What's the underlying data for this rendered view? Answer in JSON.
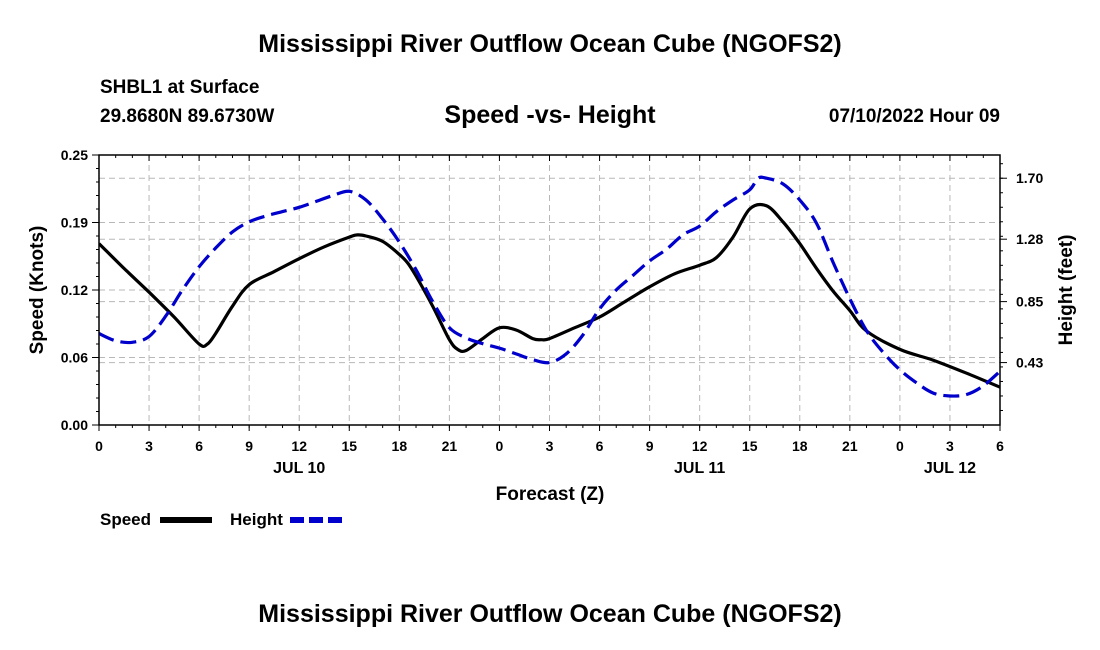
{
  "chart_data": {
    "type": "line",
    "title": "Mississippi River Outflow Ocean Cube (NGOFS2)",
    "station": "SHBL1 at Surface",
    "location": "29.8680N  89.6730W",
    "subtitle": "Speed -vs- Height",
    "datetime": "07/10/2022 Hour 09",
    "xlabel": "Forecast (Z)",
    "ylabel_left": "Speed (Knots)",
    "ylabel_right": "Height (feet)",
    "x_ticks": [
      "0",
      "3",
      "6",
      "9",
      "12",
      "15",
      "18",
      "21",
      "0",
      "3",
      "6",
      "9",
      "12",
      "15",
      "18",
      "21",
      "0",
      "3",
      "6"
    ],
    "date_labels": [
      {
        "label": "JUL 10",
        "hour": 12
      },
      {
        "label": "JUL 11",
        "hour": 36
      },
      {
        "label": "JUL 12",
        "hour": 51
      }
    ],
    "xlim": [
      0,
      54
    ],
    "ylim_left": [
      0,
      0.25
    ],
    "left_ticks": [
      "0.00",
      "0.06",
      "0.12",
      "0.19",
      "0.25"
    ],
    "left_tick_values": [
      0,
      0.0625,
      0.125,
      0.1875,
      0.25
    ],
    "right_ticks": [
      "0.43",
      "0.85",
      "1.28",
      "1.70"
    ],
    "right_tick_values": [
      0.43,
      0.85,
      1.28,
      1.7
    ],
    "ylim_right": [
      0.0,
      1.86
    ],
    "grid": true,
    "legend_position": "bottom-left",
    "series": [
      {
        "name": "Speed",
        "axis": "left",
        "color": "#000000",
        "style": "solid",
        "x": [
          0,
          1.5,
          3,
          4.5,
          6,
          6.5,
          7,
          8,
          9,
          10.5,
          12,
          13.5,
          15,
          15.5,
          16,
          17,
          18,
          18.5,
          19,
          20,
          21,
          21.5,
          22,
          23,
          24,
          25,
          26,
          26.5,
          27,
          28.5,
          30,
          31.5,
          33,
          34.5,
          36,
          37,
          38,
          39,
          40,
          41,
          42,
          43,
          44,
          45,
          46,
          48,
          50,
          52,
          54
        ],
        "values": [
          0.168,
          0.145,
          0.123,
          0.1,
          0.075,
          0.075,
          0.085,
          0.11,
          0.13,
          0.142,
          0.154,
          0.165,
          0.174,
          0.176,
          0.175,
          0.17,
          0.158,
          0.15,
          0.138,
          0.11,
          0.079,
          0.07,
          0.069,
          0.08,
          0.09,
          0.088,
          0.08,
          0.079,
          0.08,
          0.09,
          0.1,
          0.114,
          0.128,
          0.14,
          0.148,
          0.155,
          0.174,
          0.2,
          0.203,
          0.188,
          0.168,
          0.145,
          0.124,
          0.106,
          0.087,
          0.07,
          0.06,
          0.048,
          0.035
        ]
      },
      {
        "name": "Height",
        "axis": "right",
        "color": "#0000cc",
        "style": "dashed",
        "x": [
          0,
          1,
          2,
          3,
          4,
          5,
          6,
          7,
          8,
          9,
          10,
          11,
          12,
          13,
          14,
          15,
          16,
          17,
          18,
          19,
          20,
          21,
          22,
          23,
          24,
          25,
          26,
          27,
          28,
          29,
          30,
          31,
          32,
          33,
          34,
          35,
          36,
          37,
          38,
          39,
          39.5,
          40,
          41,
          42,
          43,
          44,
          45,
          46,
          47,
          48,
          49,
          50,
          51,
          52,
          53,
          54
        ],
        "values": [
          0.63,
          0.58,
          0.57,
          0.61,
          0.75,
          0.93,
          1.09,
          1.22,
          1.33,
          1.4,
          1.44,
          1.47,
          1.5,
          1.54,
          1.58,
          1.61,
          1.55,
          1.42,
          1.26,
          1.07,
          0.85,
          0.67,
          0.6,
          0.56,
          0.53,
          0.49,
          0.45,
          0.43,
          0.49,
          0.62,
          0.8,
          0.93,
          1.03,
          1.13,
          1.21,
          1.31,
          1.37,
          1.47,
          1.55,
          1.62,
          1.7,
          1.7,
          1.66,
          1.55,
          1.39,
          1.12,
          0.87,
          0.65,
          0.5,
          0.38,
          0.29,
          0.22,
          0.2,
          0.21,
          0.27,
          0.37
        ]
      }
    ]
  },
  "legend": {
    "speed_label": "Speed",
    "height_label": "Height"
  },
  "footer_title": "Mississippi River Outflow Ocean Cube (NGOFS2)"
}
